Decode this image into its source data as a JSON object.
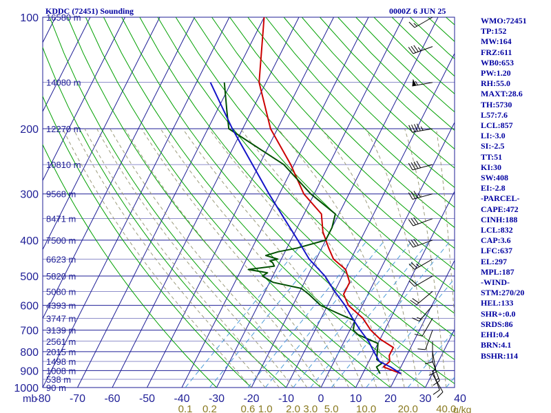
{
  "header": {
    "station_title": "KDDC (72451) Sounding",
    "time": "0000Z  6 JUN 25"
  },
  "chart_data": {
    "type": "skew-t",
    "pressure_unit_label": "mb",
    "pressure_levels": [
      100,
      200,
      300,
      400,
      500,
      600,
      700,
      800,
      900,
      1000
    ],
    "temperature_ticks": [
      "-80",
      "-70",
      "-60",
      "-50",
      "-40",
      "-30",
      "-20",
      "-10",
      "0",
      "10",
      "20",
      "30",
      "40"
    ],
    "mixing_ratio_ticks": [
      {
        "label": "0.1",
        "t": -39
      },
      {
        "label": "0.2",
        "t": -32
      },
      {
        "label": "0.6",
        "t": -21
      },
      {
        "label": "1.0",
        "t": -16
      },
      {
        "label": "2.0",
        "t": -8
      },
      {
        "label": "3.0",
        "t": -3
      },
      {
        "label": "5.0",
        "t": 3
      },
      {
        "label": "10.0",
        "t": 13
      },
      {
        "label": "20.0",
        "t": 25
      },
      {
        "label": "40.0",
        "t": 36
      }
    ],
    "mixing_ratio_unit": "g/kg",
    "height_labels": [
      {
        "p": 100,
        "label": "16580 m"
      },
      {
        "p": 150,
        "label": "14080 m"
      },
      {
        "p": 200,
        "label": "12270 m"
      },
      {
        "p": 250,
        "label": "10810 m"
      },
      {
        "p": 300,
        "label": "9568 m"
      },
      {
        "p": 350,
        "label": "8471 m"
      },
      {
        "p": 400,
        "label": "7500 m"
      },
      {
        "p": 450,
        "label": "6623 m"
      },
      {
        "p": 500,
        "label": "5820 m"
      },
      {
        "p": 550,
        "label": "5080 m"
      },
      {
        "p": 600,
        "label": "4393 m"
      },
      {
        "p": 650,
        "label": "3747 m"
      },
      {
        "p": 700,
        "label": "3139 m"
      },
      {
        "p": 750,
        "label": "2561 m"
      },
      {
        "p": 800,
        "label": "2015 m"
      },
      {
        "p": 850,
        "label": "1498 m"
      },
      {
        "p": 900,
        "label": "1008 m"
      },
      {
        "p": 950,
        "label": "538 m"
      },
      {
        "p": 1000,
        "label": "90 m"
      }
    ],
    "series": [
      {
        "color": "#cc0000",
        "points": [
          [
            917,
            21
          ],
          [
            880,
            15
          ],
          [
            850,
            16
          ],
          [
            820,
            15
          ],
          [
            780,
            15
          ],
          [
            740,
            10
          ],
          [
            700,
            6
          ],
          [
            650,
            2
          ],
          [
            600,
            -4
          ],
          [
            560,
            -7
          ],
          [
            520,
            -7
          ],
          [
            480,
            -10
          ],
          [
            450,
            -15
          ],
          [
            420,
            -18
          ],
          [
            380,
            -22
          ],
          [
            340,
            -25
          ],
          [
            300,
            -33
          ],
          [
            250,
            -41
          ],
          [
            200,
            -52
          ],
          [
            150,
            -62
          ],
          [
            100,
            -70
          ]
        ]
      },
      {
        "color": "#005000",
        "points": [
          [
            917,
            15
          ],
          [
            880,
            13
          ],
          [
            860,
            14
          ],
          [
            840,
            12
          ],
          [
            800,
            11
          ],
          [
            760,
            10
          ],
          [
            720,
            3
          ],
          [
            700,
            1
          ],
          [
            660,
            0
          ],
          [
            630,
            -6
          ],
          [
            600,
            -12
          ],
          [
            560,
            -17
          ],
          [
            540,
            -20
          ],
          [
            520,
            -29
          ],
          [
            500,
            -33
          ],
          [
            490,
            -32
          ],
          [
            480,
            -38
          ],
          [
            470,
            -31
          ],
          [
            460,
            -32
          ],
          [
            455,
            -33
          ],
          [
            450,
            -31
          ],
          [
            440,
            -35
          ],
          [
            430,
            -32
          ],
          [
            420,
            -27
          ],
          [
            400,
            -20
          ],
          [
            370,
            -20
          ],
          [
            340,
            -21
          ],
          [
            300,
            -31
          ],
          [
            250,
            -43
          ],
          [
            200,
            -64
          ],
          [
            180,
            -67
          ],
          [
            150,
            -72
          ]
        ]
      },
      {
        "color": "#1414c8",
        "points": [
          [
            917,
            21
          ],
          [
            880,
            17
          ],
          [
            850,
            13
          ],
          [
            800,
            10
          ],
          [
            750,
            7
          ],
          [
            700,
            3
          ],
          [
            650,
            -1
          ],
          [
            600,
            -5
          ],
          [
            550,
            -10
          ],
          [
            500,
            -15
          ],
          [
            450,
            -22
          ],
          [
            400,
            -28
          ],
          [
            350,
            -35
          ],
          [
            300,
            -43
          ],
          [
            250,
            -52
          ],
          [
            200,
            -63
          ],
          [
            150,
            -76
          ]
        ]
      }
    ],
    "wind_profile": [
      {
        "p": 100,
        "dir": 240,
        "kt": 15
      },
      {
        "p": 120,
        "dir": 250,
        "kt": 35
      },
      {
        "p": 150,
        "dir": 260,
        "kt": 55
      },
      {
        "p": 200,
        "dir": 260,
        "kt": 45
      },
      {
        "p": 250,
        "dir": 255,
        "kt": 40
      },
      {
        "p": 300,
        "dir": 255,
        "kt": 35
      },
      {
        "p": 350,
        "dir": 250,
        "kt": 30
      },
      {
        "p": 400,
        "dir": 250,
        "kt": 30
      },
      {
        "p": 450,
        "dir": 240,
        "kt": 25
      },
      {
        "p": 500,
        "dir": 240,
        "kt": 20
      },
      {
        "p": 550,
        "dir": 230,
        "kt": 20
      },
      {
        "p": 600,
        "dir": 220,
        "kt": 15
      },
      {
        "p": 650,
        "dir": 210,
        "kt": 10
      },
      {
        "p": 700,
        "dir": 200,
        "kt": 10
      },
      {
        "p": 750,
        "dir": 180,
        "kt": 10
      },
      {
        "p": 800,
        "dir": 170,
        "kt": 15
      },
      {
        "p": 850,
        "dir": 160,
        "kt": 15
      },
      {
        "p": 900,
        "dir": 160,
        "kt": 10
      },
      {
        "p": 920,
        "dir": 150,
        "kt": 10
      }
    ]
  },
  "indices": [
    "WMO:72451",
    "TP:152",
    "MW:164",
    "FRZ:611",
    "WB0:653",
    "PW:1.20",
    "RH:55.0",
    "MAXT:28.6",
    "TH:5730",
    "L57:7.6",
    "LCL:857",
    "LI:-3.0",
    "SI:-2.5",
    "TT:51",
    "KI:30",
    "SW:408",
    "EI:-2.8",
    "-PARCEL-",
    "CAPE:472",
    "CINH:188",
    "LCL:832",
    "CAP:3.6",
    "LFC:637",
    "EL:297",
    "MPL:187",
    "-WIND-",
    "STM:270/20",
    "HEL:133",
    "SHR+:0.0",
    "SRDS:86",
    "EHI:0.4",
    "BRN:4.1",
    "BSHR:114"
  ],
  "colors": {
    "grid": "#1e1e96",
    "dry_adiabat": "#00a000",
    "moist_adiabat": "#9a9a7a",
    "mixing_ratio": "#4a9ad8",
    "mixing_ratio_label": "#8a7a20",
    "axis_label": "#1e1e96",
    "index_text": "#0000a0"
  }
}
